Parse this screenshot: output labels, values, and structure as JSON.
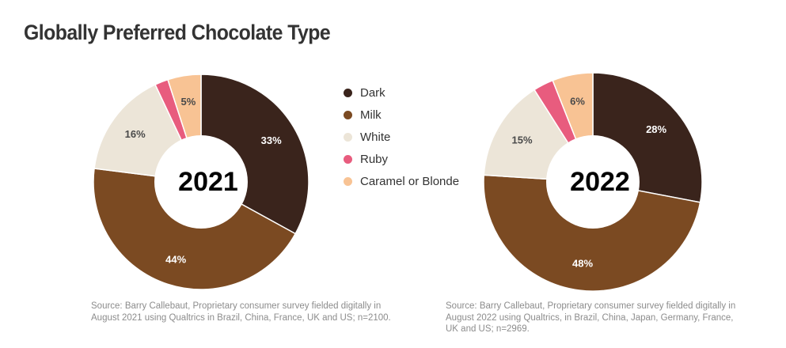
{
  "title": "Globally Preferred Chocolate Type",
  "legend": [
    {
      "name": "Dark",
      "color": "#3a241c"
    },
    {
      "name": "Milk",
      "color": "#7b4a22"
    },
    {
      "name": "White",
      "color": "#ece5d8"
    },
    {
      "name": "Ruby",
      "color": "#e85c7e"
    },
    {
      "name": "Caramel or Blonde",
      "color": "#f8c394"
    }
  ],
  "sources": {
    "y2021": "Source: Barry Callebaut, Proprietary consumer survey fielded digitally in August 2021 using Qualtrics in Brazil, China, France, UK and US; n=2100.",
    "y2022": "Source: Barry Callebaut, Proprietary consumer survey fielded digitally in August 2022 using Qualtrics, in Brazil, China, Japan, Germany, France, UK and US; n=2969."
  },
  "chart_data": [
    {
      "type": "pie",
      "style": "donut",
      "center_label": "2021",
      "categories": [
        "Dark",
        "Milk",
        "White",
        "Ruby",
        "Caramel or Blonde"
      ],
      "values": [
        33,
        44,
        16,
        2,
        5
      ],
      "data_labels": [
        "33%",
        "44%",
        "16%",
        "",
        "5%"
      ],
      "colors": [
        "#3a241c",
        "#7b4a22",
        "#ece5d8",
        "#e85c7e",
        "#f8c394"
      ],
      "legend": "right"
    },
    {
      "type": "pie",
      "style": "donut",
      "center_label": "2022",
      "categories": [
        "Dark",
        "Milk",
        "White",
        "Ruby",
        "Caramel or Blonde"
      ],
      "values": [
        28,
        48,
        15,
        3,
        6
      ],
      "data_labels": [
        "28%",
        "48%",
        "15%",
        "",
        "6%"
      ],
      "colors": [
        "#3a241c",
        "#7b4a22",
        "#ece5d8",
        "#e85c7e",
        "#f8c394"
      ],
      "legend": "right"
    }
  ]
}
